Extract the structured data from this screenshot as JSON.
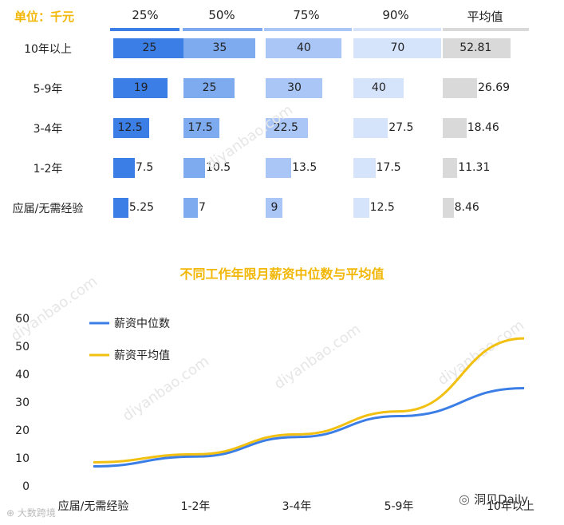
{
  "unit_label": "单位：千元",
  "columns": [
    "25%",
    "50%",
    "75%",
    "90%",
    "平均值"
  ],
  "column_colors": [
    "#3b7ee6",
    "#7eaaf0",
    "#a9c6f6",
    "#d6e4fb",
    "#d9d9d9"
  ],
  "rows": [
    {
      "label": "10年以上",
      "values": [
        25,
        35,
        40,
        70,
        52.81
      ],
      "texts": [
        "25",
        "35",
        "40",
        "70",
        "52.81"
      ]
    },
    {
      "label": "5-9年",
      "values": [
        19,
        25,
        30,
        40,
        26.69
      ],
      "texts": [
        "19",
        "25",
        "30",
        "40",
        "26.69"
      ]
    },
    {
      "label": "3-4年",
      "values": [
        12.5,
        17.5,
        22.5,
        27.5,
        18.46
      ],
      "texts": [
        "12.5",
        "17.5",
        "22.5",
        "27.5",
        "18.46"
      ]
    },
    {
      "label": "1-2年",
      "values": [
        7.5,
        10.5,
        13.5,
        17.5,
        11.31
      ],
      "texts": [
        "7.5",
        "10.5",
        "13.5",
        "17.5",
        "11.31"
      ]
    },
    {
      "label": "应届/无需经验",
      "values": [
        5.25,
        7,
        9,
        12.5,
        8.46
      ],
      "texts": [
        "5.25",
        "7",
        "9",
        "12.5",
        "8.46"
      ]
    }
  ],
  "chart_data": [
    {
      "type": "table",
      "title": "",
      "unit": "单位：千元",
      "columns": [
        "25%",
        "50%",
        "75%",
        "90%",
        "平均值"
      ],
      "rows": [
        "10年以上",
        "5-9年",
        "3-4年",
        "1-2年",
        "应届/无需经验"
      ],
      "series": [
        {
          "name": "25%",
          "values": [
            25,
            19,
            12.5,
            7.5,
            5.25
          ]
        },
        {
          "name": "50%",
          "values": [
            35,
            25,
            17.5,
            10.5,
            7
          ]
        },
        {
          "name": "75%",
          "values": [
            40,
            30,
            22.5,
            13.5,
            9
          ]
        },
        {
          "name": "90%",
          "values": [
            70,
            40,
            27.5,
            17.5,
            12.5
          ]
        },
        {
          "name": "平均值",
          "values": [
            52.81,
            26.69,
            18.46,
            11.31,
            8.46
          ]
        }
      ]
    },
    {
      "type": "line",
      "title": "不同工作年限月薪资中位数与平均值",
      "categories": [
        "应届/无需经验",
        "1-2年",
        "3-4年",
        "5-9年",
        "10年以上"
      ],
      "series": [
        {
          "name": "薪资中位数",
          "color": "#3b7ee6",
          "values": [
            7,
            10.5,
            17.5,
            25,
            35
          ]
        },
        {
          "name": "薪资平均值",
          "color": "#f2c011",
          "values": [
            8.46,
            11.31,
            18.46,
            26.69,
            52.81
          ]
        }
      ],
      "ylim": [
        0,
        60
      ],
      "yticks": [
        0,
        10,
        20,
        30,
        40,
        50,
        60
      ],
      "grid": false,
      "legend": "top-left"
    }
  ],
  "watermarks": [
    "diyanbao.com",
    "diyanbao.com",
    "diyanbao.com",
    "diyanbao.com",
    "diyanbao.com"
  ],
  "brand": "洞见Daily",
  "bottom_logo": "大数跨境"
}
